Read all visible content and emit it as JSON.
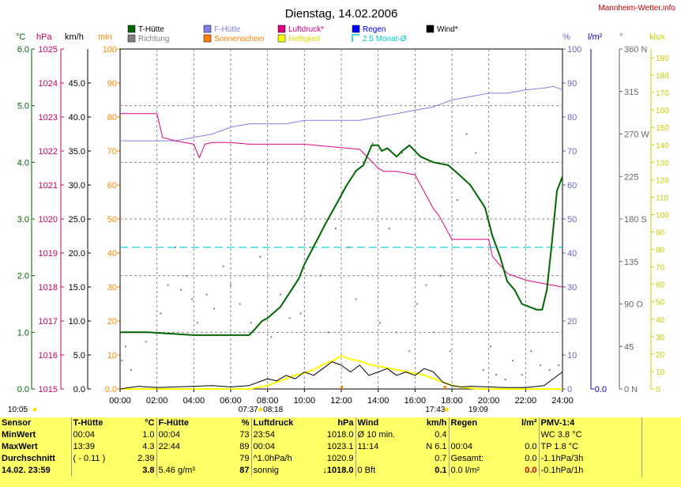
{
  "chart_data": {
    "type": "line",
    "title": "Dienstag, 14.02.2006",
    "brand": "Mannheim-Wetter.info",
    "x_ticks": [
      "00:00",
      "02:00",
      "04:00",
      "06:00",
      "08:00",
      "10:00",
      "12:00",
      "14:00",
      "16:00",
      "18:00",
      "20:00",
      "22:00",
      "24:00"
    ],
    "axes": {
      "temp_c": {
        "unit": "°C",
        "min": 0,
        "max": 6,
        "ticks": [
          "0.0",
          "1.0",
          "2.0",
          "3.0",
          "4.0",
          "5.0",
          "6.0"
        ],
        "color": "#006600"
      },
      "pressure_hpa": {
        "unit": "hPa",
        "min": 1015,
        "max": 1025,
        "ticks": [
          "1015",
          "1016",
          "1017",
          "1018",
          "1019",
          "1020",
          "1021",
          "1022",
          "1023",
          "1024",
          "1025"
        ],
        "color": "#cc0066"
      },
      "wind_kmh": {
        "unit": "km/h",
        "min": 0,
        "max": 50,
        "ticks": [
          "0.0",
          "5.0",
          "10.0",
          "15.0",
          "20.0",
          "25.0",
          "30.0",
          "35.0",
          "40.0",
          "45.0"
        ],
        "color": "#000000"
      },
      "sun_min": {
        "unit": "min",
        "min": 0,
        "max": 100,
        "ticks": [
          "0.0",
          "10",
          "20",
          "30",
          "40",
          "50",
          "60",
          "70",
          "80",
          "90",
          "100"
        ],
        "color": "#ff8800"
      },
      "humidity_pct": {
        "unit": "%",
        "min": 0,
        "max": 100,
        "ticks": [
          "0",
          "10",
          "20",
          "30",
          "40",
          "50",
          "60",
          "70",
          "80",
          "90",
          "100"
        ],
        "color": "#6666cc"
      },
      "rain_lm2": {
        "unit": "l/m²",
        "ticks": [
          "0.0"
        ],
        "color": "#0000cc"
      },
      "direction_deg": {
        "unit": "°",
        "min": 0,
        "max": 360,
        "ticks": [
          "0 N",
          "45",
          "90 O",
          "135",
          "180 S",
          "225",
          "270 W",
          "315",
          "360 N"
        ],
        "color": "#666666"
      },
      "light_klux": {
        "unit": "klux",
        "min": 0,
        "max": 190,
        "ticks": [
          "0",
          "10",
          "20",
          "30",
          "40",
          "50",
          "60",
          "70",
          "80",
          "90",
          "100",
          "110",
          "120",
          "130",
          "140",
          "150",
          "160",
          "170",
          "180",
          "190"
        ],
        "color": "#cccc00"
      }
    },
    "legend": [
      {
        "name": "T-Hütte",
        "color": "#006600"
      },
      {
        "name": "Richtung",
        "color": "#808080"
      },
      {
        "name": "F-Hütte",
        "color": "#8080e0"
      },
      {
        "name": "Sonnenschein",
        "color": "#ff8000"
      },
      {
        "name": "Luftdruck*",
        "color": "#e0007f"
      },
      {
        "name": "Helligkeit",
        "color": "#ffff00"
      },
      {
        "name": "Regen",
        "color": "#0000ff"
      },
      {
        "name": "2.5 Monat-Ø",
        "color": "#00cccc"
      },
      {
        "name": "Wind*",
        "color": "#000000"
      }
    ],
    "reference_line_temp_c": 2.5,
    "series": [
      {
        "name": "T-Hütte",
        "axis": "temp_c",
        "color": "#006600",
        "x": [
          0,
          1,
          1.5,
          4,
          5,
          6,
          7,
          7.3,
          7.7,
          8,
          8.7,
          9,
          9.7,
          10,
          10.8,
          11.2,
          11.8,
          12.3,
          12.8,
          13.2,
          13.65,
          14,
          14.2,
          14.5,
          15,
          15.3,
          15.7,
          16.3,
          17,
          17.8,
          18.5,
          19,
          19.3,
          19.8,
          20.2,
          20.6,
          21,
          21.4,
          21.8,
          22.2,
          22.6,
          22.9,
          23.15,
          23.4,
          23.7,
          24
        ],
        "y": [
          1.0,
          1.0,
          1.0,
          0.95,
          0.95,
          0.95,
          0.95,
          1.05,
          1.2,
          1.25,
          1.45,
          1.6,
          1.95,
          2.2,
          2.7,
          2.95,
          3.3,
          3.6,
          3.85,
          3.95,
          4.3,
          4.3,
          4.2,
          4.25,
          4.1,
          4.2,
          4.3,
          4.1,
          4.0,
          3.95,
          3.75,
          3.6,
          3.45,
          3.2,
          2.7,
          2.35,
          1.9,
          1.75,
          1.5,
          1.45,
          1.4,
          1.4,
          1.75,
          2.5,
          3.5,
          3.75
        ]
      },
      {
        "name": "F-Hütte",
        "axis": "humidity_pct",
        "color": "#8080e0",
        "x": [
          0,
          2,
          3,
          4,
          5,
          6,
          7,
          8,
          9,
          10,
          11,
          12,
          13,
          14,
          15,
          16,
          17,
          18,
          19,
          20,
          21,
          22,
          23,
          23.5,
          24
        ],
        "y": [
          73,
          73,
          73,
          74,
          75,
          77,
          78,
          78,
          78,
          79,
          79,
          79,
          79,
          80,
          81,
          82,
          83,
          85,
          86,
          87,
          87,
          88,
          88.5,
          89,
          88
        ]
      },
      {
        "name": "Luftdruck*",
        "axis": "pressure_hpa",
        "color": "#e0007f",
        "x": [
          0,
          2,
          2.3,
          3,
          4,
          4.3,
          4.6,
          5,
          6,
          7,
          8,
          9,
          10,
          11,
          12,
          13,
          14,
          14.3,
          14.6,
          15,
          16,
          17,
          17.3,
          17.8,
          18,
          19,
          20,
          20.2,
          21,
          22,
          23,
          24
        ],
        "y": [
          1023.1,
          1023.1,
          1022.4,
          1022.3,
          1022.2,
          1021.8,
          1022.2,
          1022.25,
          1022.25,
          1022.2,
          1022.2,
          1022.2,
          1022.2,
          1022.15,
          1022.1,
          1022.05,
          1021.5,
          1021.4,
          1021.4,
          1021.4,
          1021.3,
          1020.3,
          1020.1,
          1019.6,
          1019.4,
          1019.4,
          1019.4,
          1018.9,
          1018.4,
          1018.2,
          1018.1,
          1018.0
        ]
      },
      {
        "name": "Helligkeit",
        "axis": "light_klux",
        "color": "#ffff00",
        "x": [
          0,
          6,
          7,
          7.5,
          8,
          8.5,
          9,
          9.5,
          10,
          10.5,
          11,
          11.5,
          12,
          12.5,
          13,
          13.5,
          14,
          14.5,
          15,
          15.5,
          16,
          16.5,
          17,
          17.5,
          18,
          18.5,
          19,
          19.5,
          20,
          24
        ],
        "y": [
          0,
          0,
          0,
          1,
          2,
          4,
          6,
          8,
          9,
          11,
          14,
          16,
          19,
          17,
          16,
          14,
          13,
          12,
          11,
          10,
          9,
          8,
          6,
          4,
          2,
          1,
          0.5,
          0,
          0,
          0
        ]
      },
      {
        "name": "Wind*",
        "axis": "wind_kmh",
        "color": "#000000",
        "x": [
          0,
          0.5,
          1,
          2,
          3,
          4,
          5,
          6,
          7,
          7.5,
          8,
          8.5,
          9,
          9.5,
          10,
          10.5,
          11,
          11.5,
          12,
          12.5,
          13,
          13.5,
          14,
          14.5,
          15,
          15.5,
          16,
          16.5,
          17,
          17.5,
          18,
          18.5,
          19,
          20,
          21,
          22,
          23,
          23.5,
          24
        ],
        "y": [
          0,
          0.2,
          0.4,
          0.2,
          0.3,
          0.4,
          0.5,
          0.3,
          0.5,
          1,
          1.5,
          1.2,
          2,
          1.5,
          2.5,
          2,
          3,
          4,
          3.5,
          2.5,
          3.5,
          2,
          2.5,
          3,
          2,
          2.5,
          2,
          3,
          2.5,
          1,
          0.5,
          0.3,
          0.4,
          0.3,
          0.2,
          0.2,
          0.5,
          1.5,
          2.5
        ]
      }
    ],
    "direction_scatter_deg": [
      [
        0.1,
        30
      ],
      [
        0.3,
        45
      ],
      [
        0.6,
        20
      ],
      [
        1.1,
        60
      ],
      [
        1.4,
        50
      ],
      [
        2.2,
        80
      ],
      [
        2.6,
        110
      ],
      [
        3.0,
        150
      ],
      [
        3.3,
        105
      ],
      [
        3.6,
        120
      ],
      [
        3.9,
        95
      ],
      [
        4.2,
        70
      ],
      [
        4.7,
        100
      ],
      [
        5.1,
        85
      ],
      [
        5.6,
        130
      ],
      [
        6.0,
        110
      ],
      [
        6.5,
        90
      ],
      [
        7.1,
        70
      ],
      [
        7.6,
        140
      ],
      [
        8.2,
        55
      ],
      [
        8.7,
        100
      ],
      [
        9.2,
        75
      ],
      [
        9.8,
        80
      ],
      [
        10.3,
        150
      ],
      [
        10.9,
        120
      ],
      [
        11.3,
        60
      ],
      [
        11.7,
        170
      ],
      [
        12.1,
        210
      ],
      [
        12.4,
        150
      ],
      [
        12.8,
        95
      ],
      [
        13.2,
        240
      ],
      [
        13.7,
        260
      ],
      [
        14.1,
        70
      ],
      [
        14.6,
        170
      ],
      [
        15.0,
        60
      ],
      [
        15.3,
        250
      ],
      [
        15.7,
        40
      ],
      [
        16.1,
        90
      ],
      [
        16.6,
        110
      ],
      [
        17.0,
        60
      ],
      [
        17.4,
        120
      ],
      [
        17.9,
        40
      ],
      [
        18.3,
        200
      ],
      [
        18.8,
        270
      ],
      [
        19.3,
        250
      ],
      [
        19.7,
        20
      ],
      [
        20.1,
        45
      ],
      [
        20.4,
        15
      ],
      [
        20.9,
        10
      ],
      [
        21.3,
        30
      ],
      [
        21.8,
        15
      ],
      [
        22.3,
        40
      ],
      [
        22.8,
        25
      ],
      [
        23.3,
        20
      ],
      [
        23.8,
        25
      ]
    ],
    "sun_bars": [
      {
        "x": 12.0,
        "v": 0.5
      },
      {
        "x": 17.6,
        "v": 0.5
      }
    ],
    "markers": {
      "day_start": "10:05",
      "sunrise_left": "07:37",
      "sunrise_right": "08:18",
      "sunset_left": "17:43",
      "sunset_right": "19:09"
    }
  },
  "stats": {
    "headers": {
      "sensor": "Sensor",
      "temp": "T-Hütte",
      "temp_unit": "°C",
      "hum": "F-Hütte",
      "hum_unit": "%",
      "press": "Luftdruck",
      "press_unit": "hPa",
      "wind": "Wind",
      "wind_unit": "km/h",
      "rain": "Regen",
      "rain_unit": "l/m²",
      "pmv": "PMV-1:4"
    },
    "rows": [
      {
        "label": "MinWert",
        "t_time": "00:04",
        "t_val": "1.0",
        "h_time": "00:04",
        "h_val": "73",
        "p_time": "23:54",
        "p_val": "1018.0",
        "w_label": "Ø 10 min.",
        "w_val": "0.4",
        "r_time": "",
        "r_val": "",
        "pmv": "WC 3.8 °C"
      },
      {
        "label": "MaxWert",
        "t_time": "13:39",
        "t_val": "4.3",
        "h_time": "22:44",
        "h_val": "89",
        "p_time": "00:04",
        "p_val": "1023.1",
        "w_label": "11:14",
        "w_val": "N 6.1",
        "r_time": "00:04",
        "r_val": "0.0",
        "pmv": "TP 1.8 °C"
      },
      {
        "label": "Durchschnitt",
        "t_time": "( - 0.11 )",
        "t_val": "2.39",
        "h_time": "",
        "h_val": "79",
        "p_time": "^1.0hPa/h",
        "p_val": "1020.9",
        "w_label": "",
        "w_val": "0.7",
        "r_time": "Gesamt:",
        "r_val": "0.0",
        "pmv": "-1.1hPa/3h"
      },
      {
        "label": "14.02. 23:59",
        "t_time": "",
        "t_val": "3.8",
        "h_time": "5.46 g/m³",
        "h_val": "87",
        "p_time": "sonnig",
        "p_val": "↓1018.0",
        "w_label": "0 Bft",
        "w_val": "0.1",
        "r_time": "0.0 l/m²",
        "r_val": "0.0",
        "pmv": "-0.1hPa/1h"
      }
    ]
  }
}
